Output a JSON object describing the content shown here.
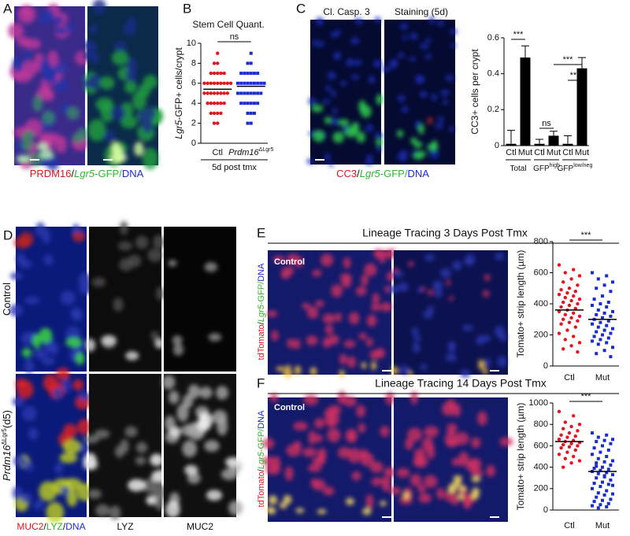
{
  "panels": {
    "a": {
      "letter": "A",
      "caption": [
        "PRDM16",
        "/",
        "Lgr5",
        "-GFP/",
        "DNA"
      ]
    },
    "b": {
      "letter": "B"
    },
    "c": {
      "letter": "C",
      "image_titles": [
        "Cl. Casp. 3",
        "Staining (5d)"
      ],
      "caption": [
        "CC3",
        "/",
        "Lgr5",
        "-GFP/",
        "DNA"
      ]
    },
    "d": {
      "letter": "D",
      "row_labels": [
        [
          "Control"
        ],
        [
          "Prdm16",
          "ΔLgr5",
          "(d5)"
        ]
      ],
      "captions": [
        [
          "MUC2",
          "/",
          "LYZ",
          "/",
          "DNA"
        ],
        [
          "LYZ"
        ],
        [
          "MUC2"
        ]
      ]
    },
    "e": {
      "letter": "E",
      "image_label": "Control",
      "side_label": [
        "tdTomato",
        "/",
        "Lgr5",
        "-GFP/",
        "DNA"
      ]
    },
    "f": {
      "letter": "F",
      "image_label": "Control",
      "side_label": [
        "tdTomato",
        "/",
        "Lgr5",
        "-GFP/",
        "DNA"
      ]
    }
  },
  "chart_data": [
    {
      "type": "dot",
      "title": "Stem Cell Quant.",
      "y_label": [
        "Lgr5",
        "-GFP+ cells/crypt"
      ],
      "categories": [
        [
          "Ctl"
        ],
        [
          "Prdm16",
          "ΔLgr5"
        ]
      ],
      "x_label": "5d post tmx",
      "annotations": [
        "ns"
      ],
      "colors": [
        "#e3141c",
        "#1b2bd4"
      ],
      "values": [
        [
          9,
          8,
          8,
          7,
          7,
          7,
          7,
          7,
          6,
          6,
          6,
          6,
          6,
          6,
          6,
          6,
          6,
          5,
          5,
          5,
          5,
          5,
          5,
          5,
          5,
          4,
          4,
          4,
          4,
          4,
          4,
          3,
          3,
          3,
          3,
          2,
          2
        ],
        [
          9,
          8,
          8,
          7,
          7,
          7,
          7,
          7,
          7,
          6,
          6,
          6,
          6,
          6,
          6,
          6,
          6,
          6,
          5,
          5,
          5,
          5,
          5,
          5,
          5,
          5,
          4,
          4,
          4,
          4,
          4,
          4,
          3,
          3,
          3,
          2,
          2
        ]
      ],
      "means": [
        5.4,
        5.7
      ],
      "ylim": [
        0,
        10
      ],
      "yticks": [
        0,
        2,
        4,
        6,
        8,
        10
      ]
    },
    {
      "type": "bar",
      "y_label": "CC3+ cells per crypt",
      "categories": [
        "Ctl",
        "Mut",
        "Ctl",
        "Mut",
        "Ctl",
        "Mut"
      ],
      "groups": [
        [
          "Total"
        ],
        [
          "GFP",
          "high"
        ],
        [
          "GFP",
          "low/neg"
        ]
      ],
      "annotations": [
        "***",
        "ns",
        "***",
        "***"
      ],
      "color": "#000000",
      "values": [
        0.01,
        0.49,
        0.01,
        0.055,
        0.01,
        0.43
      ],
      "errors": [
        0.075,
        0.065,
        0.025,
        0.025,
        0.045,
        0.06
      ],
      "ylim": [
        0,
        0.6
      ],
      "yticks": [
        0,
        0.2,
        0.4,
        0.6
      ]
    },
    {
      "type": "dot",
      "title": "Lineage Tracing 3 Days Post Tmx",
      "y_label": [
        "Tomato+ strip length (µm)"
      ],
      "categories": [
        [
          "Ctl"
        ],
        [
          "Mut"
        ]
      ],
      "annotations": [
        "***"
      ],
      "colors": [
        "#e3141c",
        "#1b2bd4"
      ],
      "values": [
        [
          650,
          620,
          600,
          580,
          560,
          540,
          520,
          500,
          490,
          480,
          470,
          460,
          450,
          440,
          430,
          420,
          410,
          400,
          390,
          380,
          370,
          360,
          350,
          340,
          330,
          320,
          310,
          300,
          290,
          280,
          270,
          250,
          230,
          210,
          190,
          170,
          150,
          130,
          110,
          90
        ],
        [
          600,
          580,
          560,
          540,
          520,
          500,
          480,
          450,
          430,
          410,
          400,
          390,
          380,
          360,
          350,
          340,
          330,
          320,
          310,
          300,
          290,
          280,
          270,
          260,
          250,
          240,
          230,
          220,
          210,
          200,
          190,
          180,
          170,
          160,
          150,
          140,
          120,
          100,
          80,
          60
        ]
      ],
      "means": [
        360,
        300
      ],
      "ylim": [
        0,
        800
      ],
      "yticks": [
        0,
        200,
        400,
        600,
        800
      ]
    },
    {
      "type": "dot",
      "title": "Lineage Tracing 14 Days Post Tmx",
      "y_label": [
        "Tomato+ strip length (µm)"
      ],
      "categories": [
        [
          "Ctl"
        ],
        [
          "Mut"
        ]
      ],
      "annotations": [
        "***"
      ],
      "colors": [
        "#e3141c",
        "#1b2bd4"
      ],
      "values": [
        [
          920,
          880,
          820,
          800,
          780,
          760,
          740,
          720,
          700,
          690,
          680,
          660,
          650,
          640,
          630,
          620,
          610,
          600,
          590,
          580,
          560,
          540,
          520,
          500,
          480,
          460,
          440,
          400
        ],
        [
          720,
          700,
          680,
          660,
          650,
          640,
          620,
          600,
          580,
          560,
          540,
          520,
          500,
          480,
          460,
          450,
          440,
          420,
          400,
          390,
          380,
          370,
          360,
          350,
          340,
          330,
          320,
          300,
          280,
          260,
          250,
          240,
          220,
          200,
          180,
          160,
          150,
          140,
          120,
          100,
          90,
          80,
          60,
          50,
          40,
          30,
          20,
          230,
          310,
          410
        ]
      ],
      "means": [
        640,
        360
      ],
      "ylim": [
        0,
        1000
      ],
      "yticks": [
        0,
        200,
        400,
        600,
        800,
        1000
      ]
    }
  ]
}
